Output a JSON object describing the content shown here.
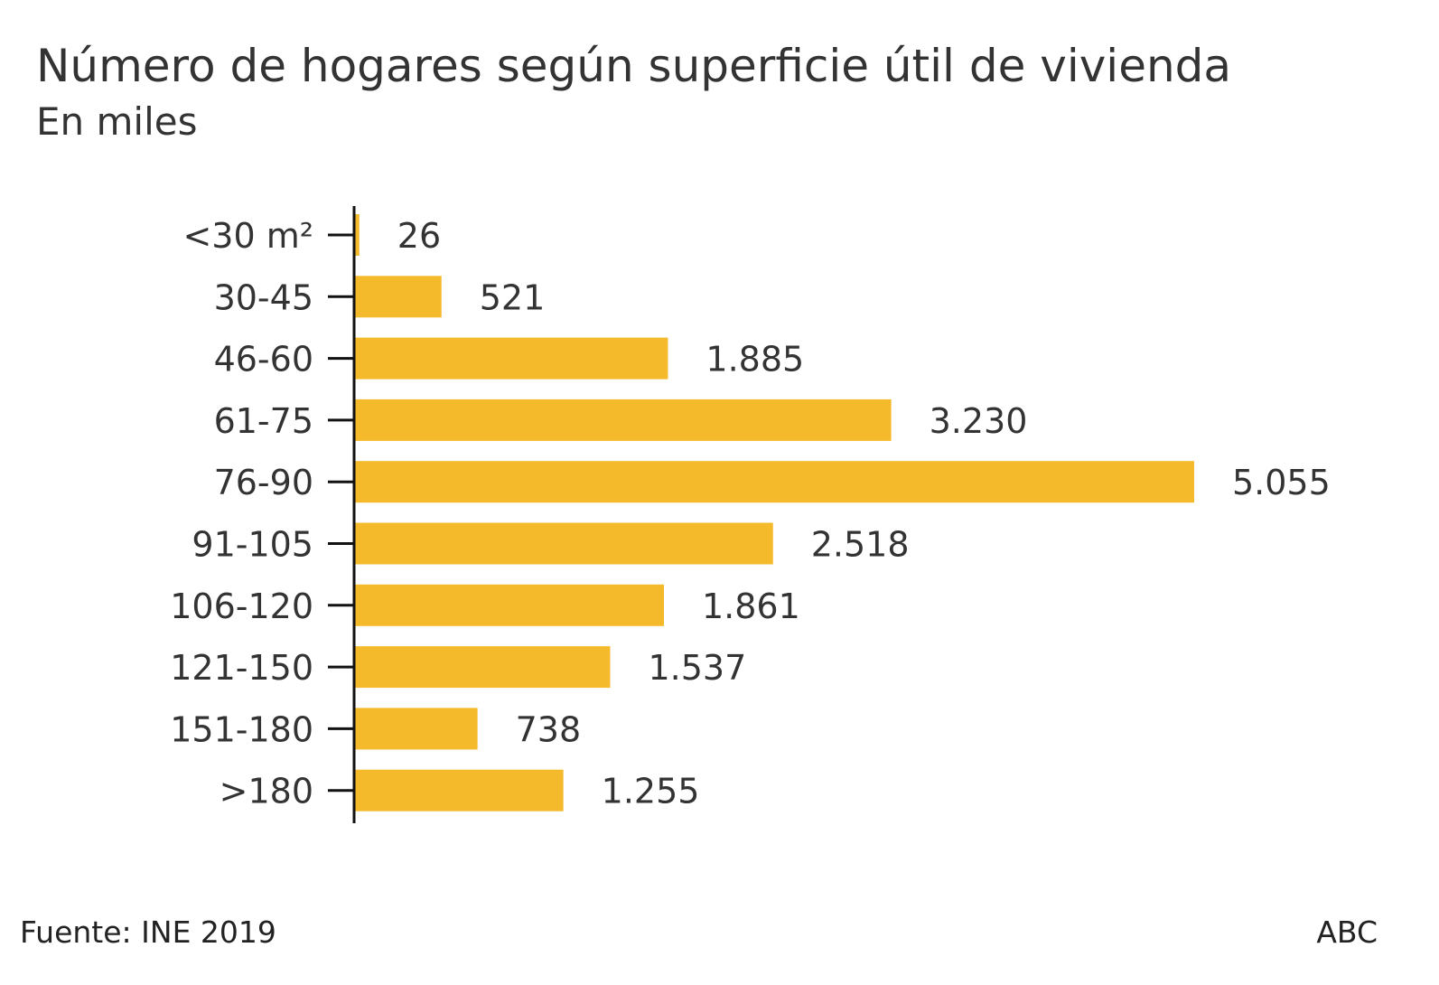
{
  "chart_data": {
    "type": "bar",
    "orientation": "horizontal",
    "title": "Número de hogares según superficie útil de vivienda",
    "subtitle": "En miles",
    "categories": [
      "<30 m²",
      "30-45",
      "46-60",
      "61-75",
      "76-90",
      "91-105",
      "106-120",
      "121-150",
      "151-180",
      ">180"
    ],
    "values": [
      26,
      521,
      1885,
      3230,
      5055,
      2518,
      1861,
      1537,
      738,
      1255
    ],
    "value_labels": [
      "26",
      "521",
      "1.885",
      "3.230",
      "5.055",
      "2.518",
      "1.861",
      "1.537",
      "738",
      "1.255"
    ],
    "xlim": [
      0,
      5055
    ],
    "grid": false,
    "bar_color": "#f5b92c",
    "axis_color": "#111111"
  },
  "footer": {
    "source": "Fuente: INE 2019",
    "brand": "ABC"
  }
}
